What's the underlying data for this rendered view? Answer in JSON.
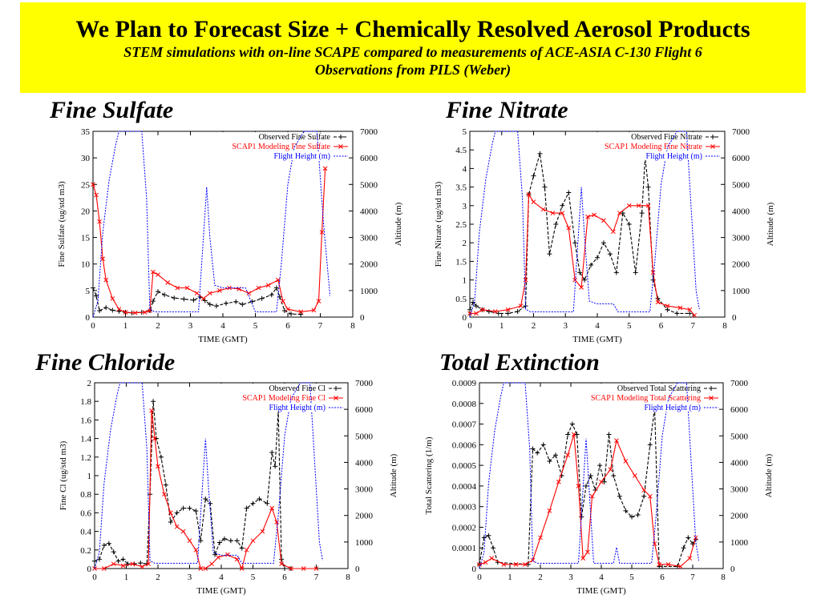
{
  "header": {
    "title": "We Plan to Forecast Size + Chemically Resolved Aerosol Products",
    "subtitle_line1": "STEM simulations with on-line SCAPE compared to measurements of ACE-ASIA C-130 Flight 6",
    "subtitle_line2": "Observations from PILS (Weber)"
  },
  "colors": {
    "banner": "#ffff00",
    "observed": "#000000",
    "model": "#ff0000",
    "flight": "#0000ff"
  },
  "chart_data": [
    {
      "type": "line",
      "title": "Fine Sulfate",
      "xlabel": "TIME (GMT)",
      "ylabel": "Fine Sulfate (ug/std m3)",
      "y2label": "Altitude (m)",
      "xlim": [
        0,
        8
      ],
      "ylim": [
        0,
        35
      ],
      "y2lim": [
        0,
        7000
      ],
      "xticks": [
        "0",
        "1",
        "2",
        "3",
        "4",
        "5",
        "6",
        "7",
        "8"
      ],
      "yticks": [
        "0",
        "5",
        "10",
        "15",
        "20",
        "25",
        "30",
        "35"
      ],
      "y2ticks": [
        "0",
        "1000",
        "2000",
        "3000",
        "4000",
        "5000",
        "6000",
        "7000"
      ],
      "legend_position": "top-right",
      "grid": false,
      "series": [
        {
          "name": "Observed Fine Sulfate",
          "axis": "left",
          "color": "#000000",
          "marker": "+",
          "x": [
            0.0,
            0.1,
            0.2,
            0.4,
            0.6,
            0.8,
            1.0,
            1.2,
            1.5,
            1.75,
            1.85,
            2.0,
            2.2,
            2.5,
            2.8,
            3.1,
            3.3,
            3.45,
            3.6,
            3.8,
            4.1,
            4.4,
            4.6,
            4.9,
            5.2,
            5.5,
            5.65,
            5.75,
            5.9,
            6.1,
            6.4
          ],
          "y": [
            5.5,
            4.0,
            1.2,
            1.8,
            1.3,
            1.1,
            0.9,
            0.8,
            0.9,
            1.2,
            3.0,
            4.8,
            4.2,
            3.6,
            3.4,
            3.2,
            3.8,
            3.1,
            2.4,
            2.1,
            2.6,
            2.9,
            2.4,
            2.9,
            3.5,
            4.2,
            5.5,
            3.8,
            1.2,
            0.6,
            0.5
          ]
        },
        {
          "name": "SCAP1 Modeling Fine Sulfate",
          "axis": "left",
          "color": "#ff0000",
          "marker": "x",
          "x": [
            0.0,
            0.1,
            0.2,
            0.3,
            0.4,
            0.6,
            0.8,
            1.0,
            1.3,
            1.6,
            1.75,
            1.85,
            2.0,
            2.3,
            2.6,
            2.9,
            3.2,
            3.4,
            3.6,
            3.9,
            4.2,
            4.5,
            4.8,
            5.1,
            5.4,
            5.7,
            5.85,
            6.0,
            6.4,
            6.8,
            6.95,
            7.05,
            7.15
          ],
          "y": [
            25.0,
            23.0,
            18.0,
            11.0,
            7.0,
            3.5,
            1.5,
            0.9,
            0.8,
            0.9,
            1.2,
            8.5,
            8.0,
            6.5,
            5.5,
            5.5,
            4.5,
            3.5,
            4.5,
            5.0,
            5.5,
            5.3,
            4.5,
            5.5,
            6.0,
            7.0,
            3.0,
            1.5,
            1.0,
            1.3,
            3.0,
            16.0,
            28.0
          ]
        },
        {
          "name": "Flight Height (m)",
          "axis": "right",
          "color": "#0000ff",
          "marker": "",
          "x": [
            0.0,
            0.15,
            0.3,
            0.5,
            0.7,
            0.8,
            1.5,
            1.65,
            1.75,
            1.9,
            3.25,
            3.4,
            3.5,
            3.6,
            3.75,
            4.0,
            4.7,
            5.0,
            5.65,
            5.8,
            6.0,
            6.2,
            6.5,
            6.9,
            7.1,
            7.3
          ],
          "y": [
            0,
            600,
            3200,
            5200,
            6500,
            7000,
            7000,
            4500,
            300,
            200,
            200,
            3000,
            4900,
            3000,
            1200,
            1100,
            1100,
            200,
            200,
            2000,
            5000,
            6400,
            7000,
            7000,
            3500,
            800
          ]
        }
      ]
    },
    {
      "type": "line",
      "title": "Fine Nitrate",
      "xlabel": "TIME (GMT)",
      "ylabel": "Fine Nitrate (ug/std m3)",
      "y2label": "Altitude (m)",
      "xlim": [
        0,
        8
      ],
      "ylim": [
        0,
        5
      ],
      "y2lim": [
        0,
        7000
      ],
      "xticks": [
        "0",
        "1",
        "2",
        "3",
        "4",
        "5",
        "6",
        "7",
        "8"
      ],
      "yticks": [
        "0",
        "0.5",
        "1",
        "1.5",
        "2",
        "2.5",
        "3",
        "3.5",
        "4",
        "4.5",
        "5"
      ],
      "y2ticks": [
        "0",
        "1000",
        "2000",
        "3000",
        "4000",
        "5000",
        "6000",
        "7000"
      ],
      "legend_position": "top-right",
      "grid": false,
      "series": [
        {
          "name": "Observed Fine Nitrate",
          "axis": "left",
          "color": "#000000",
          "marker": "+",
          "x": [
            0.0,
            0.1,
            0.2,
            0.4,
            0.6,
            0.9,
            1.2,
            1.5,
            1.75,
            1.85,
            2.0,
            2.2,
            2.35,
            2.5,
            2.7,
            2.9,
            3.1,
            3.3,
            3.45,
            3.6,
            3.8,
            4.0,
            4.2,
            4.4,
            4.6,
            4.8,
            5.0,
            5.2,
            5.4,
            5.5,
            5.6,
            5.75,
            5.9,
            6.2,
            6.5,
            6.9
          ],
          "y": [
            0.2,
            0.4,
            0.3,
            0.2,
            0.15,
            0.1,
            0.1,
            0.15,
            0.3,
            3.3,
            3.8,
            4.4,
            3.5,
            1.7,
            2.5,
            3.0,
            3.35,
            2.0,
            1.2,
            1.0,
            1.4,
            1.6,
            2.0,
            1.7,
            1.2,
            2.8,
            2.5,
            1.2,
            2.8,
            4.3,
            3.5,
            1.0,
            0.5,
            0.2,
            0.1,
            0.1
          ]
        },
        {
          "name": "SCAP1 Modeling Fine Nitrate",
          "axis": "left",
          "color": "#ff0000",
          "marker": "x",
          "x": [
            0.0,
            0.2,
            0.4,
            0.8,
            1.2,
            1.6,
            1.75,
            1.85,
            2.0,
            2.3,
            2.6,
            2.9,
            3.1,
            3.3,
            3.5,
            3.7,
            3.9,
            4.2,
            4.5,
            4.7,
            5.0,
            5.3,
            5.6,
            5.75,
            5.9,
            6.2,
            6.6,
            6.9,
            7.05
          ],
          "y": [
            0.1,
            0.1,
            0.2,
            0.15,
            0.2,
            0.3,
            1.0,
            3.3,
            3.1,
            2.9,
            2.8,
            2.8,
            2.4,
            1.0,
            0.8,
            2.7,
            2.75,
            2.6,
            2.3,
            2.8,
            3.0,
            3.0,
            3.0,
            1.2,
            0.4,
            0.3,
            0.25,
            0.2,
            0.05
          ]
        },
        {
          "name": "Flight Height (m)",
          "axis": "right",
          "color": "#0000ff",
          "marker": "",
          "x": [
            0.0,
            0.15,
            0.3,
            0.5,
            0.7,
            0.8,
            1.5,
            1.65,
            1.75,
            1.9,
            3.25,
            3.4,
            3.5,
            3.6,
            3.75,
            4.0,
            4.5,
            4.65,
            5.65,
            5.8,
            6.0,
            6.2,
            6.5,
            6.8,
            6.95,
            7.1,
            7.2
          ],
          "y": [
            0,
            600,
            3200,
            5200,
            6500,
            7000,
            7000,
            4500,
            300,
            200,
            200,
            3000,
            4900,
            3000,
            600,
            500,
            500,
            200,
            200,
            2000,
            5000,
            6400,
            7000,
            7000,
            4000,
            1000,
            300
          ]
        }
      ]
    },
    {
      "type": "line",
      "title": "Fine Chloride",
      "xlabel": "TIME (GMT)",
      "ylabel": "Fine Cl (ug/std m3)",
      "y2label": "Altitude (m)",
      "xlim": [
        0,
        8
      ],
      "ylim": [
        0,
        2
      ],
      "y2lim": [
        0,
        7000
      ],
      "xticks": [
        "0",
        "1",
        "2",
        "3",
        "4",
        "5",
        "6",
        "7",
        "8"
      ],
      "yticks": [
        "0",
        "0.2",
        "0.4",
        "0.6",
        "0.8",
        "1",
        "1.2",
        "1.4",
        "1.6",
        "1.8",
        "2"
      ],
      "y2ticks": [
        "0",
        "1000",
        "2000",
        "3000",
        "4000",
        "5000",
        "6000",
        "7000"
      ],
      "legend_position": "top-right",
      "grid": false,
      "series": [
        {
          "name": "Observed Fine Cl",
          "axis": "left",
          "color": "#000000",
          "marker": "+",
          "x": [
            0.0,
            0.15,
            0.3,
            0.45,
            0.6,
            0.75,
            0.9,
            1.05,
            1.25,
            1.45,
            1.65,
            1.75,
            1.85,
            1.95,
            2.1,
            2.25,
            2.4,
            2.6,
            2.8,
            3.0,
            3.2,
            3.35,
            3.5,
            3.65,
            3.8,
            3.95,
            4.1,
            4.3,
            4.5,
            4.65,
            4.8,
            5.0,
            5.2,
            5.45,
            5.6,
            5.7,
            5.8,
            5.9,
            6.0,
            6.2
          ],
          "y": [
            0.08,
            0.1,
            0.25,
            0.27,
            0.18,
            0.08,
            0.1,
            0.05,
            0.05,
            0.06,
            0.05,
            0.8,
            1.8,
            1.4,
            1.2,
            0.9,
            0.5,
            0.6,
            0.65,
            0.65,
            0.62,
            0.3,
            0.75,
            0.7,
            0.15,
            0.28,
            0.32,
            0.3,
            0.3,
            0.22,
            0.65,
            0.7,
            0.75,
            0.7,
            1.25,
            1.1,
            1.7,
            0.1,
            0.0,
            0.0
          ]
        },
        {
          "name": "SCAP1 Modeling Fine Cl",
          "axis": "left",
          "color": "#ff0000",
          "marker": "x",
          "x": [
            0.0,
            0.3,
            0.6,
            0.9,
            1.2,
            1.5,
            1.7,
            1.8,
            1.9,
            2.0,
            2.2,
            2.4,
            2.6,
            2.8,
            3.0,
            3.2,
            3.35,
            3.5,
            3.7,
            3.9,
            4.2,
            4.5,
            4.65,
            4.8,
            5.0,
            5.3,
            5.6,
            5.75,
            5.9,
            6.2,
            6.6,
            7.0
          ],
          "y": [
            0.0,
            0.0,
            0.05,
            0.03,
            0.05,
            0.02,
            0.05,
            1.7,
            1.4,
            1.1,
            0.8,
            0.6,
            0.45,
            0.4,
            0.3,
            0.2,
            0.0,
            0.0,
            0.05,
            0.12,
            0.15,
            0.1,
            0.0,
            0.2,
            0.3,
            0.4,
            0.65,
            0.5,
            0.05,
            0.0,
            0.0,
            0.0
          ]
        },
        {
          "name": "Flight Height (m)",
          "axis": "right",
          "color": "#0000ff",
          "marker": "",
          "x": [
            0.0,
            0.15,
            0.3,
            0.5,
            0.7,
            0.8,
            1.5,
            1.65,
            1.75,
            1.9,
            3.25,
            3.4,
            3.5,
            3.6,
            3.75,
            4.0,
            4.5,
            4.65,
            5.65,
            5.8,
            6.0,
            6.2,
            6.5,
            6.8,
            6.95,
            7.1,
            7.2
          ],
          "y": [
            0,
            600,
            3200,
            5200,
            6500,
            7000,
            7000,
            4500,
            300,
            200,
            200,
            3000,
            4900,
            3000,
            600,
            500,
            500,
            200,
            200,
            2000,
            5000,
            6400,
            7000,
            7000,
            4000,
            1000,
            300
          ]
        }
      ]
    },
    {
      "type": "line",
      "title": "Total Extinction",
      "xlabel": "TIME (GMT)",
      "ylabel": "Total Scattering (1/m)",
      "y2label": "Altitude (m)",
      "xlim": [
        0,
        8
      ],
      "ylim": [
        0,
        0.0009
      ],
      "y2lim": [
        0,
        7000
      ],
      "xticks": [
        "0",
        "1",
        "2",
        "3",
        "4",
        "5",
        "6",
        "7",
        "8"
      ],
      "yticks": [
        "0",
        "0.0001",
        "0.0002",
        "0.0003",
        "0.0004",
        "0.0005",
        "0.0006",
        "0.0007",
        "0.0008",
        "0.0009"
      ],
      "y2ticks": [
        "0",
        "1000",
        "2000",
        "3000",
        "4000",
        "5000",
        "6000",
        "7000"
      ],
      "legend_position": "top-right",
      "grid": false,
      "series": [
        {
          "name": "Observed Total Scattering",
          "axis": "left",
          "color": "#000000",
          "marker": "+",
          "x": [
            0.0,
            0.15,
            0.3,
            0.45,
            0.6,
            1.6,
            1.75,
            1.9,
            2.1,
            2.3,
            2.5,
            2.7,
            2.9,
            3.05,
            3.2,
            3.35,
            3.5,
            3.65,
            3.8,
            3.95,
            4.1,
            4.25,
            4.4,
            4.6,
            4.8,
            5.0,
            5.2,
            5.4,
            5.6,
            5.75,
            5.9,
            6.5,
            6.7,
            6.85,
            7.0,
            7.1
          ],
          "y": [
            2e-05,
            0.00015,
            0.00016,
            0.0001,
            3e-05,
            2e-05,
            0.00058,
            0.00056,
            0.0006,
            0.00052,
            0.00055,
            0.00045,
            0.00065,
            0.0007,
            0.00065,
            0.00025,
            0.0004,
            0.00045,
            0.00038,
            0.0005,
            0.00042,
            0.00065,
            0.00045,
            0.00035,
            0.00028,
            0.00025,
            0.00026,
            0.00035,
            0.0006,
            0.00078,
            1e-05,
            1e-05,
            0.0001,
            0.00015,
            0.00012,
            0.00014
          ]
        },
        {
          "name": "SCAP1 Modeling Total Scattering",
          "axis": "left",
          "color": "#ff0000",
          "marker": "x",
          "x": [
            0.0,
            0.2,
            0.4,
            0.8,
            1.2,
            1.5,
            1.75,
            2.0,
            2.3,
            2.6,
            2.9,
            3.1,
            3.25,
            3.4,
            3.55,
            3.7,
            4.0,
            4.3,
            4.5,
            4.8,
            5.1,
            5.4,
            5.6,
            5.75,
            5.9,
            6.2,
            6.6,
            6.9,
            7.1
          ],
          "y": [
            2e-05,
            3e-05,
            5e-05,
            2e-05,
            2e-05,
            2e-05,
            4e-05,
            0.00015,
            0.00028,
            0.00042,
            0.00055,
            0.00065,
            0.0004,
            5e-05,
            8e-05,
            0.00035,
            0.00042,
            0.00048,
            0.00062,
            0.00052,
            0.00045,
            0.00038,
            0.00035,
            0.00012,
            2e-05,
            2e-05,
            1e-05,
            5e-05,
            0.00015
          ]
        },
        {
          "name": "Flight Height (m)",
          "axis": "right",
          "color": "#0000ff",
          "marker": "",
          "x": [
            0.0,
            0.15,
            0.3,
            0.5,
            0.7,
            0.8,
            1.5,
            1.65,
            1.75,
            1.9,
            3.25,
            3.4,
            3.5,
            3.6,
            3.75,
            4.4,
            4.5,
            4.6,
            5.65,
            5.8,
            6.0,
            6.2,
            6.5,
            6.8,
            6.95,
            7.1,
            7.2
          ],
          "y": [
            0,
            600,
            3200,
            5200,
            6500,
            7000,
            7000,
            4500,
            300,
            200,
            200,
            3000,
            4900,
            3000,
            200,
            200,
            800,
            200,
            200,
            2000,
            5000,
            6400,
            7000,
            7000,
            4000,
            1000,
            300
          ]
        }
      ]
    }
  ]
}
